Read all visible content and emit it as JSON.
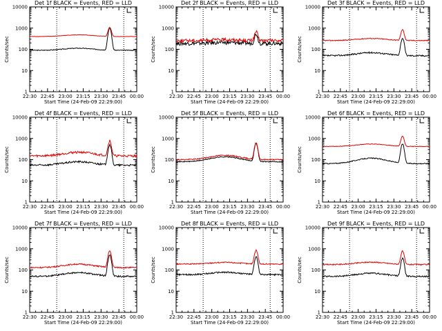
{
  "figure": {
    "xlabel": "Start Time (24-Feb-09 22:29:00)",
    "ylabel": "Counts/sec",
    "x_tick_labels": [
      "22:30",
      "22:45",
      "23:00",
      "23:15",
      "23:30",
      "23:45",
      "00:00"
    ],
    "y_tick_labels": [
      "1",
      "10",
      "100",
      "1000",
      "10000"
    ],
    "colors": {
      "events": "#000000",
      "lld": "#e00000",
      "axes": "#000000",
      "background": "#ffffff"
    }
  },
  "chart_data": [
    {
      "type": "line",
      "title": "Det 1f BLACK = Events, RED = LLD",
      "xlabel": "Start Time (24-Feb-09 22:29:00)",
      "ylabel": "Counts/sec",
      "yscale": "log",
      "xlim": [
        0,
        99
      ],
      "ylim": [
        1,
        10000
      ],
      "markers": [
        25,
        87
      ],
      "series": [
        {
          "name": "BLACK = Events",
          "base": 90,
          "bump": 1.25,
          "peak": 11,
          "noise": 0.04
        },
        {
          "name": "RED = LLD",
          "base": 400,
          "bump": 1.2,
          "peak": 2.7,
          "noise": 0.02
        }
      ]
    },
    {
      "type": "line",
      "title": "Det 2f BLACK = Events, RED = LLD",
      "xlabel": "Start Time (24-Feb-09 22:29:00)",
      "ylabel": "Counts/sec",
      "yscale": "log",
      "xlim": [
        0,
        99
      ],
      "ylim": [
        1,
        10000
      ],
      "markers": [
        25,
        87
      ],
      "series": [
        {
          "name": "BLACK = Events",
          "base": 190,
          "bump": 1.1,
          "peak": 2.8,
          "noise": 0.2
        },
        {
          "name": "RED = LLD",
          "base": 260,
          "bump": 1.1,
          "peak": 2.6,
          "noise": 0.18
        }
      ]
    },
    {
      "type": "line",
      "title": "Det 3f BLACK = Events, RED = LLD",
      "xlabel": "Start Time (24-Feb-09 22:29:00)",
      "ylabel": "Counts/sec",
      "yscale": "log",
      "xlim": [
        0,
        99
      ],
      "ylim": [
        1,
        10000
      ],
      "markers": [
        25,
        87
      ],
      "series": [
        {
          "name": "BLACK = Events",
          "base": 50,
          "bump": 1.4,
          "peak": 6.5,
          "noise": 0.08
        },
        {
          "name": "RED = LLD",
          "base": 260,
          "bump": 1.25,
          "peak": 3.2,
          "noise": 0.05
        }
      ]
    },
    {
      "type": "line",
      "title": "Det 4f BLACK = Events, RED = LLD",
      "xlabel": "Start Time (24-Feb-09 22:29:00)",
      "ylabel": "Counts/sec",
      "yscale": "log",
      "xlim": [
        0,
        99
      ],
      "ylim": [
        1,
        10000
      ],
      "markers": [
        25,
        87
      ],
      "series": [
        {
          "name": "BLACK = Events",
          "base": 55,
          "bump": 1.45,
          "peak": 9,
          "noise": 0.1
        },
        {
          "name": "RED = LLD",
          "base": 150,
          "bump": 1.5,
          "peak": 5,
          "noise": 0.12
        }
      ]
    },
    {
      "type": "line",
      "title": "Det 5f BLACK = Events, RED = LLD",
      "xlabel": "Start Time (24-Feb-09 22:29:00)",
      "ylabel": "Counts/sec",
      "yscale": "log",
      "xlim": [
        0,
        99
      ],
      "ylim": [
        1,
        10000
      ],
      "markers": [
        25,
        87
      ],
      "series": [
        {
          "name": "BLACK = Events",
          "base": 80,
          "bump": 1.7,
          "peak": 7,
          "noise": 0.05
        },
        {
          "name": "RED = LLD",
          "base": 100,
          "bump": 1.6,
          "peak": 6,
          "noise": 0.06
        }
      ]
    },
    {
      "type": "line",
      "title": "Det 6f BLACK = Events, RED = LLD",
      "xlabel": "Start Time (24-Feb-09 22:29:00)",
      "ylabel": "Counts/sec",
      "yscale": "log",
      "xlim": [
        0,
        99
      ],
      "ylim": [
        1,
        10000
      ],
      "markers": [
        25,
        87
      ],
      "series": [
        {
          "name": "BLACK = Events",
          "base": 65,
          "bump": 1.8,
          "peak": 8,
          "noise": 0.05
        },
        {
          "name": "RED = LLD",
          "base": 420,
          "bump": 1.3,
          "peak": 3,
          "noise": 0.03
        }
      ]
    },
    {
      "type": "line",
      "title": "Det 7f BLACK = Events, RED = LLD",
      "xlabel": "Start Time (24-Feb-09 22:29:00)",
      "ylabel": "Counts/sec",
      "yscale": "log",
      "xlim": [
        0,
        99
      ],
      "ylim": [
        1,
        10000
      ],
      "markers": [
        25,
        87
      ],
      "series": [
        {
          "name": "BLACK = Events",
          "base": 50,
          "bump": 1.5,
          "peak": 10,
          "noise": 0.08
        },
        {
          "name": "RED = LLD",
          "base": 130,
          "bump": 1.45,
          "peak": 6,
          "noise": 0.07
        }
      ]
    },
    {
      "type": "line",
      "title": "Det 8f BLACK = Events, RED = LLD",
      "xlabel": "Start Time (24-Feb-09 22:29:00)",
      "ylabel": "Counts/sec",
      "yscale": "log",
      "xlim": [
        0,
        99
      ],
      "ylim": [
        1,
        10000
      ],
      "markers": [
        25,
        87
      ],
      "series": [
        {
          "name": "BLACK = Events",
          "base": 60,
          "bump": 1.3,
          "peak": 7,
          "noise": 0.08
        },
        {
          "name": "RED = LLD",
          "base": 190,
          "bump": 1.2,
          "peak": 4.5,
          "noise": 0.06
        }
      ]
    },
    {
      "type": "line",
      "title": "Det 9f BLACK = Events, RED = LLD",
      "xlabel": "Start Time (24-Feb-09 22:29:00)",
      "ylabel": "Counts/sec",
      "yscale": "log",
      "xlim": [
        0,
        99
      ],
      "ylim": [
        1,
        10000
      ],
      "markers": [
        25,
        87
      ],
      "series": [
        {
          "name": "BLACK = Events",
          "base": 50,
          "bump": 1.4,
          "peak": 7,
          "noise": 0.08
        },
        {
          "name": "RED = LLD",
          "base": 180,
          "bump": 1.3,
          "peak": 4.2,
          "noise": 0.06
        }
      ]
    }
  ]
}
